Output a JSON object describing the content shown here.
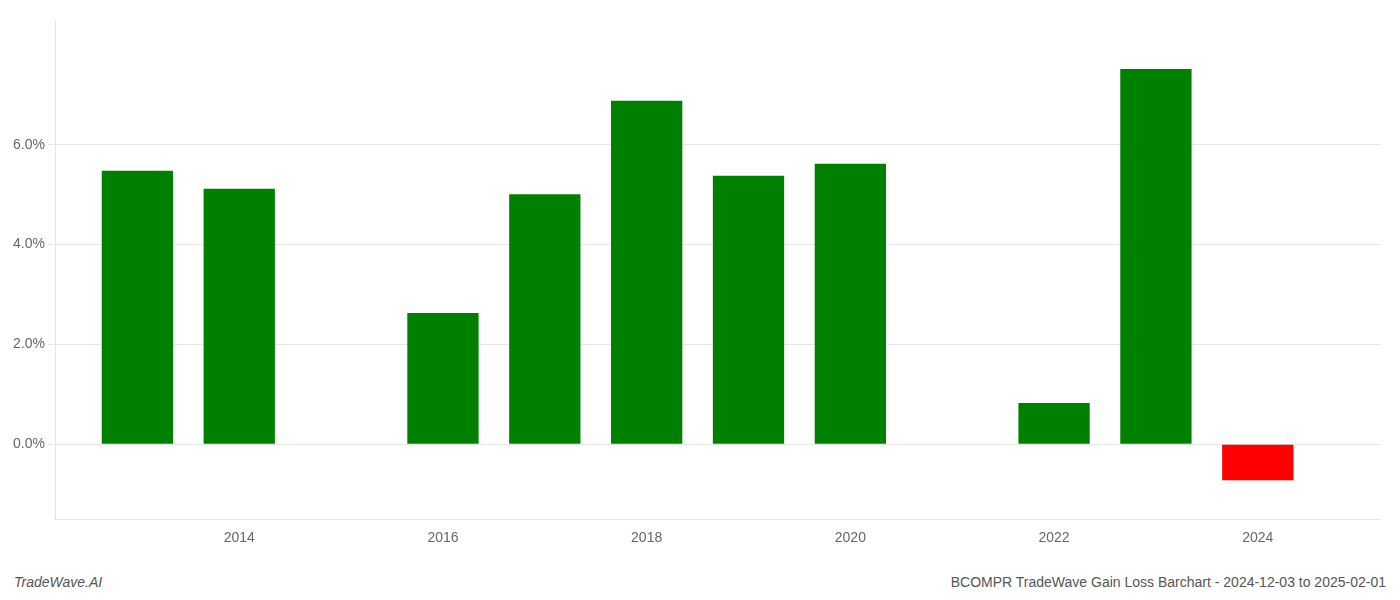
{
  "chart_data": {
    "type": "bar",
    "x": [
      2013,
      2014,
      2016,
      2017,
      2018,
      2019,
      2020,
      2022,
      2023,
      2024
    ],
    "values": [
      0.0548,
      0.0512,
      0.0263,
      0.0501,
      0.0688,
      0.0538,
      0.0562,
      0.0083,
      0.0752,
      -0.0072
    ],
    "colors": [
      "#008000",
      "#008000",
      "#008000",
      "#008000",
      "#008000",
      "#008000",
      "#008000",
      "#008000",
      "#008000",
      "#ff0000"
    ],
    "xlim": [
      2012.2,
      2025.2
    ],
    "xticks": [
      2014,
      2016,
      2018,
      2020,
      2022,
      2024
    ],
    "ylim": [
      -0.015,
      0.085
    ],
    "yticks": [
      {
        "value": 0.0,
        "label": "0.0%"
      },
      {
        "value": 0.02,
        "label": "2.0%"
      },
      {
        "value": 0.04,
        "label": "4.0%"
      },
      {
        "value": 0.06,
        "label": "6.0%"
      }
    ],
    "grid": true,
    "annotations": [
      "TradeWave.AI",
      "BCOMPR TradeWave Gain Loss Barchart - 2024-12-03 to 2025-02-01"
    ]
  }
}
